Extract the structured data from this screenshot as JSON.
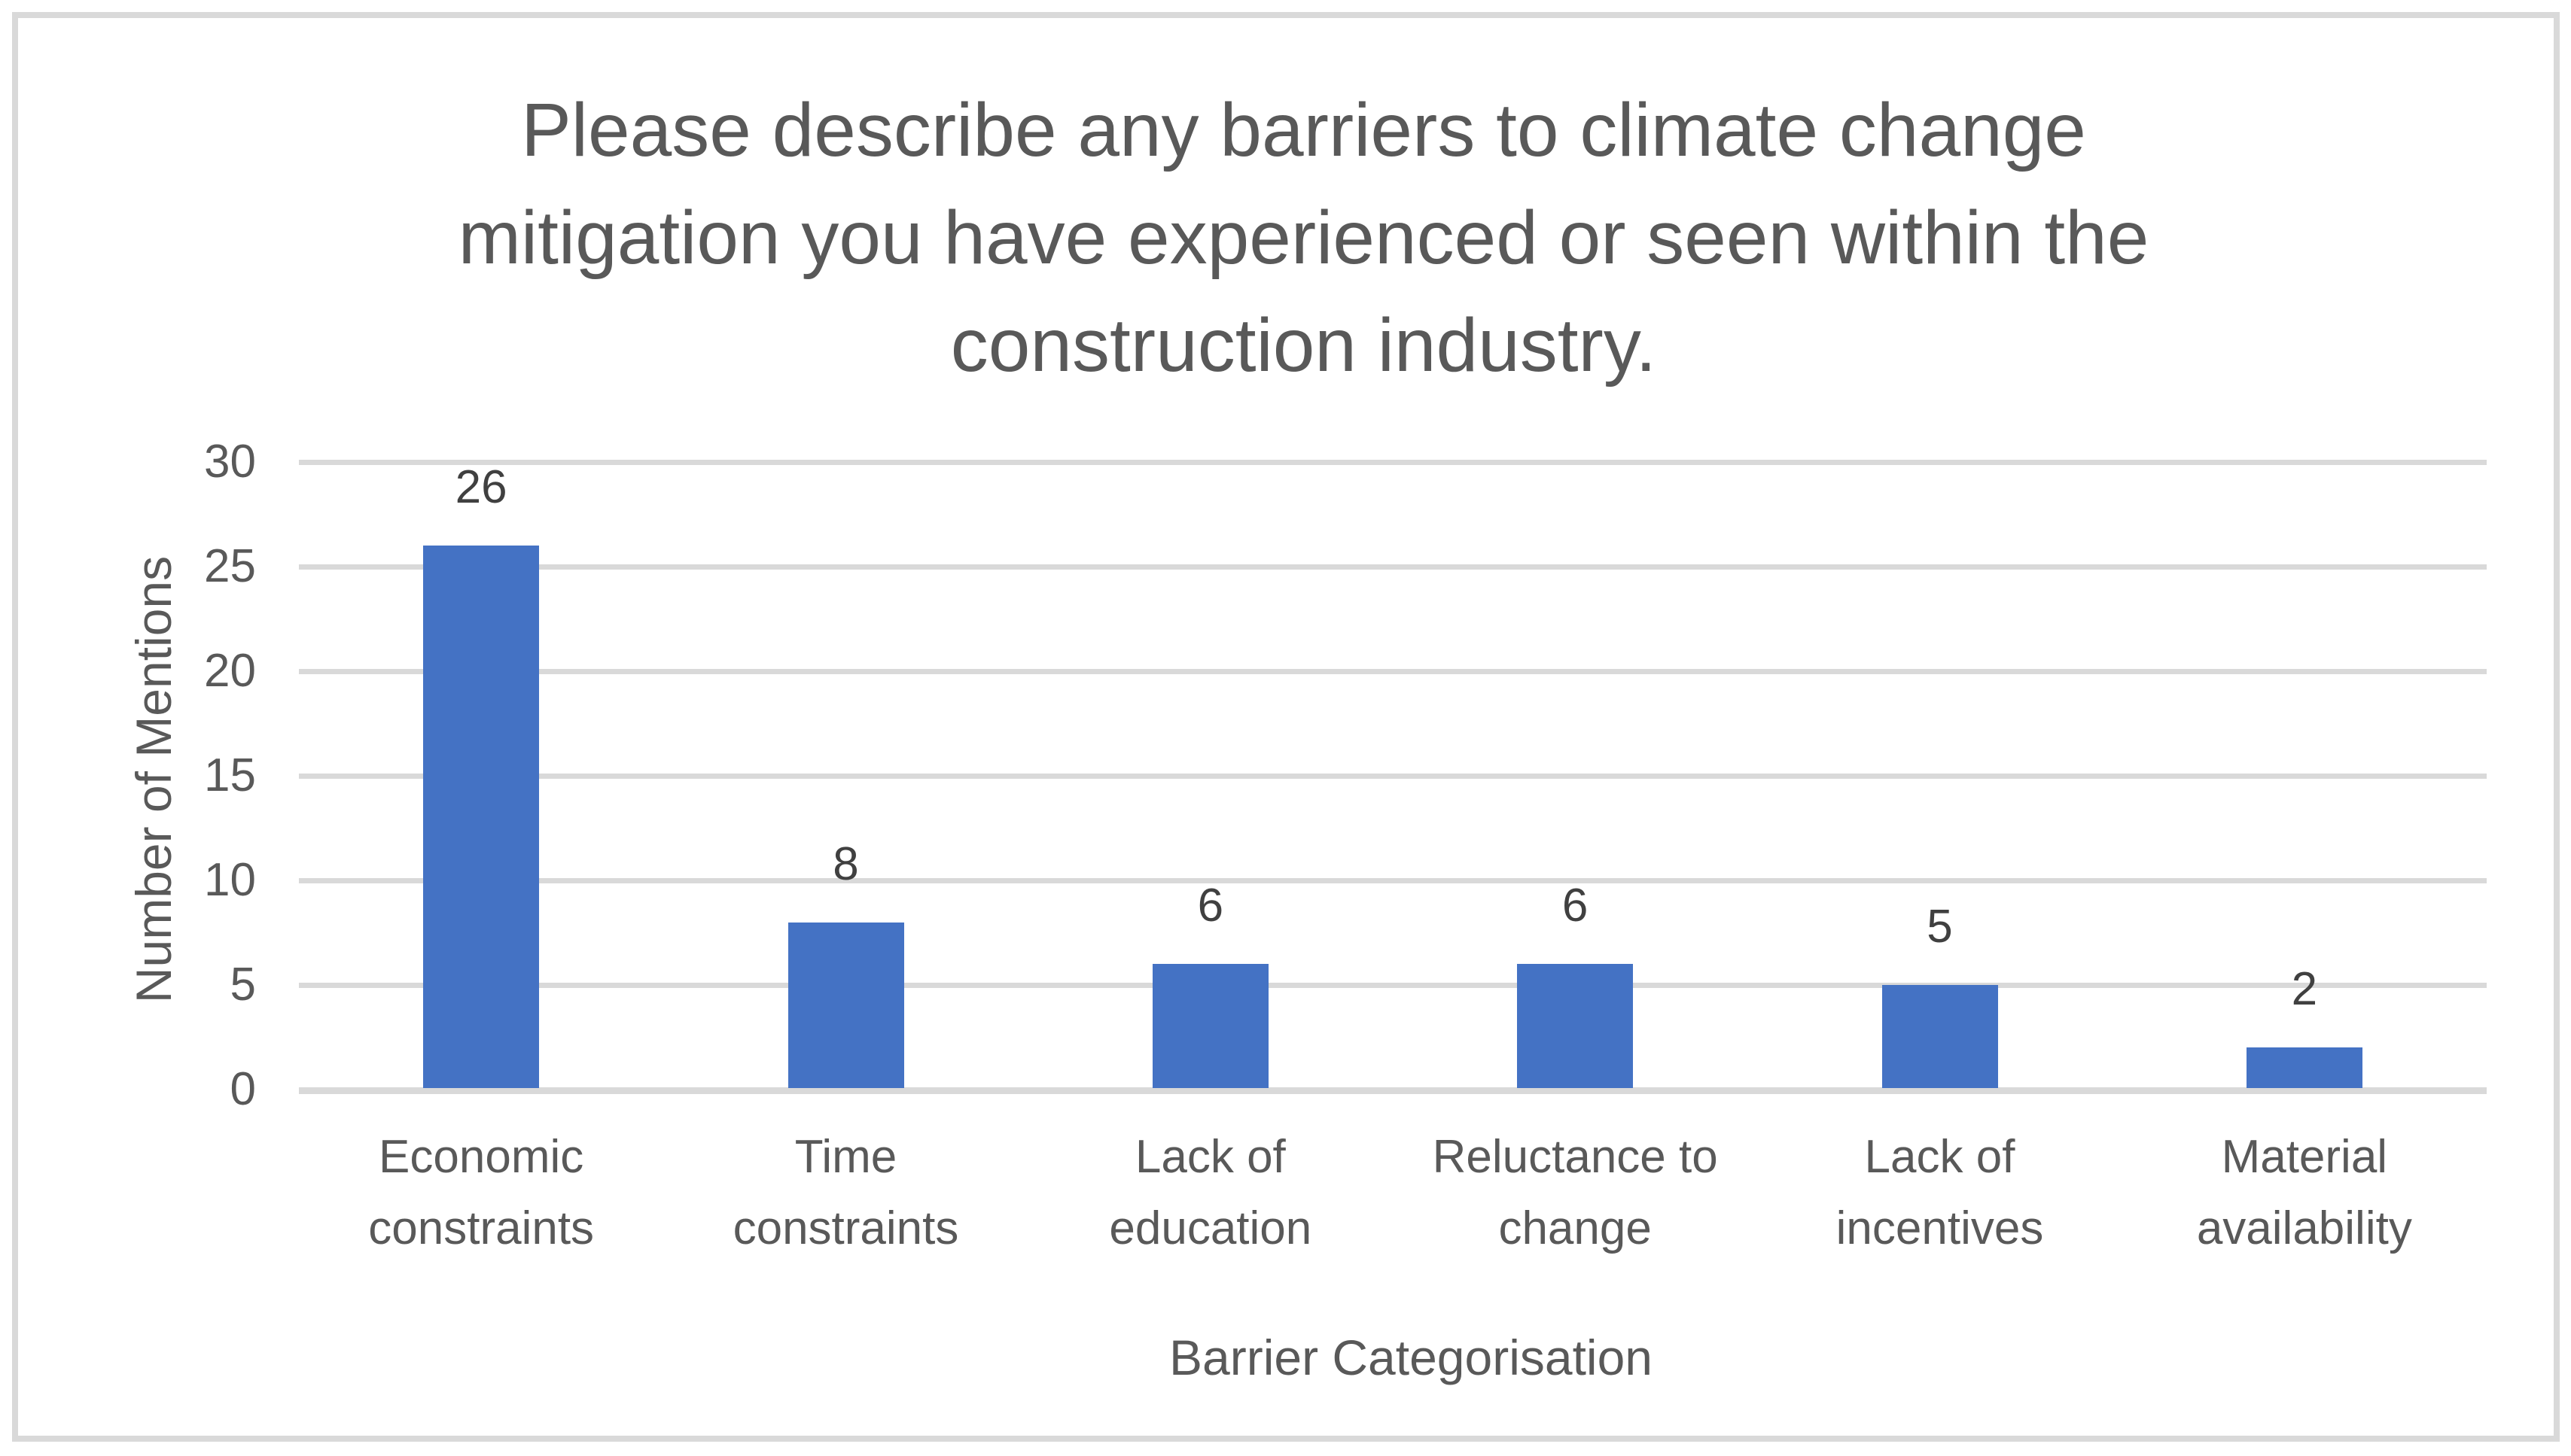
{
  "chart_data": {
    "type": "bar",
    "title": "Please describe any barriers to climate change mitigation you have experienced or seen within the construction industry.",
    "title_lines": [
      "Please describe any barriers to climate change",
      "mitigation you have experienced or seen within the",
      "construction industry."
    ],
    "categories": [
      "Economic constraints",
      "Time constraints",
      "Lack of education",
      "Reluctance to change",
      "Lack of incentives",
      "Material availability"
    ],
    "values": [
      26,
      8,
      6,
      6,
      5,
      2
    ],
    "xlabel": "Barrier Categorisation",
    "ylabel": "Number of Mentions",
    "ylim": [
      0,
      30
    ],
    "yticks": [
      0,
      5,
      10,
      15,
      20,
      25,
      30
    ],
    "grid": true,
    "legend": false,
    "colors": {
      "bar": "#4472C4",
      "gridline": "#D9D9D9",
      "axis_line": "#D9D9D9",
      "title_text": "#595959",
      "axis_text": "#595959",
      "data_label_text": "#404040",
      "frame_border": "#D9D9D9",
      "background": "#FFFFFF"
    }
  }
}
